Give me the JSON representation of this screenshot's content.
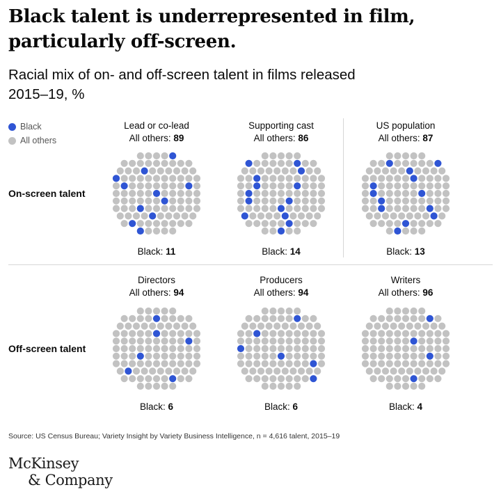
{
  "headline": {
    "line1": "Black talent is underrepresented in film,",
    "line2": "particularly off-screen."
  },
  "subhead": {
    "line1": "Racial mix of on- and off-screen talent in films released",
    "line2": "2015–19,",
    "unit": "%"
  },
  "legend": [
    {
      "label": "Black",
      "color": "#2f55d4"
    },
    {
      "label": "All others",
      "color": "#c2c2c2"
    }
  ],
  "row_labels": [
    "On-screen talent",
    "Off-screen talent"
  ],
  "colors": {
    "black": "#2f55d4",
    "others": "#c2c2c2"
  },
  "chart_data": {
    "type": "dot-grid",
    "title": "Racial mix of on- and off-screen talent in films released 2015–19, %",
    "unit": "%",
    "panels": [
      {
        "row": "On-screen talent",
        "name": "Lead or co-lead",
        "others_label": "All others:",
        "others": 89,
        "black_label": "Black:",
        "black": 11
      },
      {
        "row": "On-screen talent",
        "name": "Supporting cast",
        "others_label": "All others:",
        "others": 86,
        "black_label": "Black:",
        "black": 14
      },
      {
        "row": "On-screen talent",
        "name": "US population",
        "others_label": "All others:",
        "others": 87,
        "black_label": "Black:",
        "black": 13
      },
      {
        "row": "Off-screen talent",
        "name": "Directors",
        "others_label": "All others:",
        "others": 94,
        "black_label": "Black:",
        "black": 6
      },
      {
        "row": "Off-screen talent",
        "name": "Producers",
        "others_label": "All others:",
        "others": 94,
        "black_label": "Black:",
        "black": 6
      },
      {
        "row": "Off-screen talent",
        "name": "Writers",
        "others_label": "All others:",
        "others": 96,
        "black_label": "Black:",
        "black": 4
      }
    ]
  },
  "source": "Source: US Census Bureau; Variety Insight by Variety Business Intelligence, n = 4,616 talent, 2015–19",
  "logo": {
    "line1": "McKinsey",
    "line2": "& Company"
  }
}
